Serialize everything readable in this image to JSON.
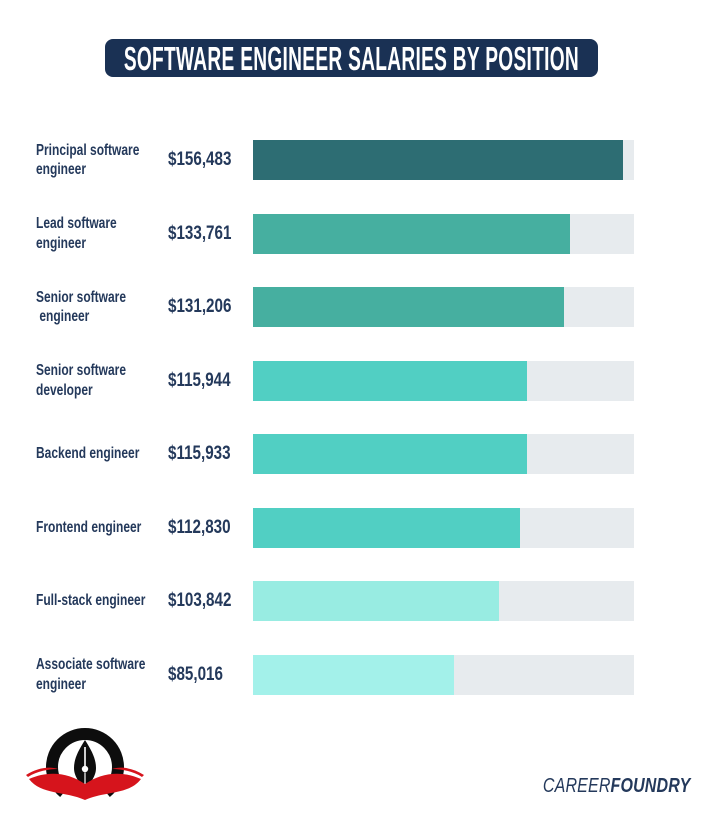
{
  "title": "SOFTWARE ENGINEER SALARIES BY POSITION",
  "brand": {
    "light": "CAREER",
    "bold": "FOUNDRY"
  },
  "colors": {
    "page_bg": "#ffffff",
    "banner_bg": "#1a3154",
    "text_navy": "#24395b",
    "track": "#e7ebee",
    "logo_black": "#0d0d0d",
    "logo_red": "#d6141c"
  },
  "chart_data": {
    "type": "bar",
    "orientation": "horizontal",
    "title": "SOFTWARE ENGINEER SALARIES BY POSITION",
    "categories": [
      "Principal software\nengineer",
      "Lead software\nengineer",
      "Senior software\n engineer",
      "Senior software\ndeveloper",
      "Backend engineer",
      "Frontend engineer",
      "Full-stack engineer",
      "Associate software\nengineer"
    ],
    "values": [
      156483,
      133761,
      131206,
      115944,
      115933,
      112830,
      103842,
      85016
    ],
    "value_labels": [
      "$156,483",
      "$133,761",
      "$131,206",
      "$115,944",
      "$115,933",
      "$112,830",
      "$103,842",
      "$85,016"
    ],
    "bar_colors": [
      "#2d6d73",
      "#46afa0",
      "#46afa0",
      "#51cfc3",
      "#51cfc3",
      "#51cfc3",
      "#98ece2",
      "#a3f1ea"
    ],
    "track_color": "#e7ebee",
    "xlim": [
      0,
      161000
    ],
    "xlabel": "",
    "ylabel": "",
    "grid": false,
    "legend": "none"
  }
}
